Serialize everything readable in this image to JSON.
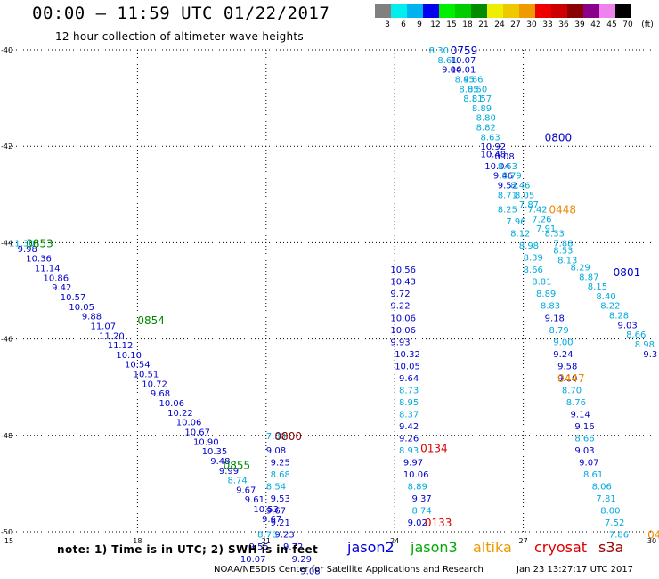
{
  "header": {
    "title": "00:00 – 11:59 UTC 01/22/2017",
    "subtitle": "12 hour collection of altimeter wave heights"
  },
  "color_scale": {
    "unit": "(ft)",
    "bins": [
      {
        "label": "3",
        "color": "#808080"
      },
      {
        "label": "6",
        "color": "#00eeee"
      },
      {
        "label": "9",
        "color": "#00b2ee"
      },
      {
        "label": "12",
        "color": "#0000ee"
      },
      {
        "label": "15",
        "color": "#00ee00"
      },
      {
        "label": "18",
        "color": "#00cd00"
      },
      {
        "label": "21",
        "color": "#008b00"
      },
      {
        "label": "24",
        "color": "#eeee00"
      },
      {
        "label": "27",
        "color": "#eec900"
      },
      {
        "label": "30",
        "color": "#ee9a00"
      },
      {
        "label": "33",
        "color": "#ee0000"
      },
      {
        "label": "36",
        "color": "#cd0000"
      },
      {
        "label": "39",
        "color": "#8b0000"
      },
      {
        "label": "42",
        "color": "#8b008b"
      },
      {
        "label": "45",
        "color": "#ee82ee"
      },
      {
        "label": "70",
        "color": "#000000"
      }
    ]
  },
  "map": {
    "lon_range": [
      15,
      30
    ],
    "lat_range": [
      -50,
      -40
    ],
    "lon_ticks": [
      "15",
      "18",
      "21",
      "24",
      "27",
      "30"
    ],
    "lat_ticks": [
      "-40",
      "-42",
      "-44",
      "-46",
      "-48",
      "-50"
    ],
    "colors": {
      "cyan": "#00aadd",
      "blue": "#0000cc",
      "green": "#008800",
      "orange": "#ee8800",
      "red": "#dd0000",
      "darkred": "#8b0000"
    },
    "tracks": [
      {
        "pts": [
          [
            15.0,
            -44.0,
            "11.30",
            "cyan"
          ],
          [
            15.2,
            -44.12,
            "9.98",
            "blue"
          ],
          [
            15.4,
            -44.32,
            "10.36",
            "blue"
          ],
          [
            15.6,
            -44.52,
            "11.14",
            "blue"
          ],
          [
            15.8,
            -44.72,
            "10.86",
            "blue"
          ],
          [
            16.0,
            -44.92,
            "9.42",
            "blue"
          ],
          [
            16.2,
            -45.12,
            "10.57",
            "blue"
          ],
          [
            16.4,
            -45.32,
            "10.05",
            "blue"
          ],
          [
            16.7,
            -45.52,
            "9.88",
            "blue"
          ],
          [
            16.9,
            -45.72,
            "11.07",
            "blue"
          ],
          [
            17.1,
            -45.92,
            "11.20",
            "blue"
          ],
          [
            17.3,
            -46.12,
            "11.12",
            "blue"
          ],
          [
            17.5,
            -46.32,
            "10.10",
            "blue"
          ],
          [
            17.7,
            -46.52,
            "10.54",
            "blue"
          ],
          [
            17.9,
            -46.72,
            "10.51",
            "blue"
          ],
          [
            18.1,
            -46.92,
            "10.72",
            "blue"
          ],
          [
            18.3,
            -47.12,
            "9.68",
            "blue"
          ],
          [
            18.5,
            -47.32,
            "10.06",
            "blue"
          ],
          [
            18.7,
            -47.52,
            "10.22",
            "blue"
          ],
          [
            18.9,
            -47.72,
            "10.06",
            "blue"
          ],
          [
            19.1,
            -47.92,
            "10.67",
            "blue"
          ],
          [
            19.3,
            -48.12,
            "10.90",
            "blue"
          ],
          [
            19.5,
            -48.32,
            "10.35",
            "blue"
          ],
          [
            19.7,
            -48.52,
            "9.48",
            "blue"
          ],
          [
            19.9,
            -48.72,
            "9.99",
            "blue"
          ],
          [
            20.1,
            -48.92,
            "8.74",
            "cyan"
          ],
          [
            20.3,
            -49.12,
            "9.67",
            "blue"
          ],
          [
            20.5,
            -49.32,
            "9.61",
            "blue"
          ],
          [
            20.7,
            -49.52,
            "10.53",
            "blue"
          ],
          [
            20.9,
            -49.72,
            "9.67",
            "blue"
          ]
        ]
      },
      {
        "pts": [
          [
            21.0,
            -48.0,
            "7.30",
            "cyan"
          ],
          [
            21.0,
            -48.3,
            "9.08",
            "blue"
          ],
          [
            21.1,
            -48.55,
            "9.25",
            "blue"
          ],
          [
            21.1,
            -48.8,
            "8.68",
            "cyan"
          ],
          [
            21.0,
            -49.05,
            "8.54",
            "cyan"
          ],
          [
            21.1,
            -49.3,
            "9.53",
            "blue"
          ],
          [
            21.0,
            -49.55,
            "9.67",
            "blue"
          ],
          [
            21.1,
            -49.8,
            "9.21",
            "blue"
          ],
          [
            21.2,
            -50.05,
            "9.23",
            "blue"
          ],
          [
            21.4,
            -50.3,
            "9.72",
            "blue"
          ],
          [
            21.6,
            -50.55,
            "9.29",
            "blue"
          ],
          [
            21.8,
            -50.8,
            "9.08",
            "blue"
          ],
          [
            20.8,
            -50.05,
            "8.78",
            "cyan"
          ],
          [
            20.6,
            -50.3,
            "9.55",
            "blue"
          ],
          [
            20.4,
            -50.55,
            "10.07",
            "blue"
          ]
        ]
      },
      {
        "pts": [
          [
            23.9,
            -44.55,
            "10.56",
            "blue"
          ],
          [
            23.9,
            -44.8,
            "10.43",
            "blue"
          ],
          [
            23.9,
            -45.05,
            "9.72",
            "blue"
          ],
          [
            23.9,
            -45.3,
            "9.22",
            "blue"
          ],
          [
            23.9,
            -45.55,
            "10.06",
            "blue"
          ],
          [
            23.9,
            -45.8,
            "10.06",
            "blue"
          ],
          [
            23.9,
            -46.05,
            "9.93",
            "blue"
          ],
          [
            24.0,
            -46.3,
            "10.32",
            "blue"
          ],
          [
            24.0,
            -46.55,
            "10.05",
            "blue"
          ],
          [
            24.1,
            -46.8,
            "9.64",
            "blue"
          ],
          [
            24.1,
            -47.05,
            "8.73",
            "cyan"
          ],
          [
            24.1,
            -47.3,
            "8.95",
            "cyan"
          ],
          [
            24.1,
            -47.55,
            "8.37",
            "cyan"
          ],
          [
            24.1,
            -47.8,
            "9.42",
            "blue"
          ],
          [
            24.1,
            -48.05,
            "9.26",
            "blue"
          ],
          [
            24.1,
            -48.3,
            "8.93",
            "cyan"
          ],
          [
            24.2,
            -48.55,
            "9.97",
            "blue"
          ],
          [
            24.2,
            -48.8,
            "10.06",
            "blue"
          ],
          [
            24.3,
            -49.05,
            "8.89",
            "cyan"
          ],
          [
            24.4,
            -49.3,
            "9.37",
            "blue"
          ],
          [
            24.4,
            -49.55,
            "8.74",
            "cyan"
          ],
          [
            24.3,
            -49.8,
            "9.02",
            "blue"
          ]
        ]
      },
      {
        "pts": [
          [
            24.8,
            -40.0,
            "8.30",
            "cyan"
          ],
          [
            25.0,
            -40.2,
            "8.61",
            "cyan"
          ],
          [
            25.1,
            -40.4,
            "9.04",
            "blue"
          ],
          [
            25.3,
            -40.4,
            "10.01",
            "blue"
          ],
          [
            25.3,
            -40.2,
            "10.07",
            "blue"
          ],
          [
            25.4,
            -40.6,
            "8.45",
            "cyan"
          ],
          [
            25.6,
            -40.6,
            "9.66",
            "cyan"
          ],
          [
            25.5,
            -40.8,
            "8.05",
            "cyan"
          ],
          [
            25.7,
            -40.8,
            "8.50",
            "cyan"
          ],
          [
            25.6,
            -41.0,
            "8.81",
            "cyan"
          ],
          [
            25.8,
            -41.0,
            "8.57",
            "cyan"
          ],
          [
            25.8,
            -41.2,
            "8.89",
            "cyan"
          ],
          [
            25.9,
            -41.4,
            "8.80",
            "cyan"
          ],
          [
            25.9,
            -41.6,
            "8.82",
            "cyan"
          ],
          [
            26.0,
            -41.8,
            "8.63",
            "cyan"
          ],
          [
            26.0,
            -42.0,
            "10.92",
            "blue"
          ],
          [
            26.0,
            -42.15,
            "10.48",
            "blue"
          ],
          [
            26.2,
            -42.2,
            "10.08",
            "blue"
          ],
          [
            26.1,
            -42.4,
            "10.04",
            "blue"
          ],
          [
            26.4,
            -42.4,
            "8.63",
            "cyan"
          ],
          [
            26.3,
            -42.6,
            "9.46",
            "blue"
          ],
          [
            26.5,
            -42.6,
            "8.79",
            "cyan"
          ],
          [
            26.4,
            -42.8,
            "9.52",
            "blue"
          ],
          [
            26.7,
            -42.8,
            "8.46",
            "cyan"
          ],
          [
            26.8,
            -43.0,
            "8.05",
            "cyan"
          ],
          [
            26.4,
            -43.0,
            "8.71",
            "cyan"
          ],
          [
            26.9,
            -43.2,
            "7.87",
            "cyan"
          ],
          [
            26.4,
            -43.3,
            "8.25",
            "cyan"
          ],
          [
            27.1,
            -43.3,
            "7.42",
            "cyan"
          ],
          [
            27.2,
            -43.5,
            "7.26",
            "cyan"
          ],
          [
            26.6,
            -43.55,
            "7.96",
            "cyan"
          ],
          [
            27.3,
            -43.7,
            "7.91",
            "cyan"
          ],
          [
            26.7,
            -43.8,
            "8.12",
            "cyan"
          ],
          [
            27.5,
            -43.8,
            "8.33",
            "cyan"
          ],
          [
            27.7,
            -44.0,
            "7.88",
            "cyan"
          ],
          [
            26.9,
            -44.05,
            "8.98",
            "cyan"
          ],
          [
            27.7,
            -44.15,
            "8.53",
            "cyan"
          ],
          [
            27.0,
            -44.3,
            "8.39",
            "cyan"
          ],
          [
            27.8,
            -44.35,
            "8.13",
            "cyan"
          ],
          [
            28.1,
            -44.5,
            "8.29",
            "cyan"
          ],
          [
            27.0,
            -44.55,
            "8.66",
            "cyan"
          ],
          [
            28.3,
            -44.7,
            "8.87",
            "cyan"
          ],
          [
            27.2,
            -44.8,
            "8.81",
            "cyan"
          ],
          [
            28.5,
            -44.9,
            "8.15",
            "cyan"
          ],
          [
            27.3,
            -45.05,
            "8.89",
            "cyan"
          ],
          [
            28.7,
            -45.1,
            "8.40",
            "cyan"
          ],
          [
            27.4,
            -45.3,
            "8.83",
            "cyan"
          ],
          [
            28.8,
            -45.3,
            "8.22",
            "cyan"
          ],
          [
            27.5,
            -45.55,
            "9.18",
            "blue"
          ],
          [
            29.0,
            -45.5,
            "8.28",
            "cyan"
          ],
          [
            27.6,
            -45.8,
            "8.79",
            "cyan"
          ],
          [
            29.2,
            -45.7,
            "9.03",
            "blue"
          ],
          [
            29.4,
            -45.9,
            "8.66",
            "cyan"
          ],
          [
            27.7,
            -46.05,
            "9.00",
            "cyan"
          ],
          [
            29.6,
            -46.1,
            "8.98",
            "cyan"
          ],
          [
            29.8,
            -46.3,
            "9.3",
            "blue"
          ],
          [
            27.7,
            -46.3,
            "9.24",
            "blue"
          ],
          [
            27.8,
            -46.55,
            "9.58",
            "blue"
          ],
          [
            27.8,
            -46.8,
            "9.10",
            "blue"
          ],
          [
            27.9,
            -47.05,
            "8.70",
            "cyan"
          ],
          [
            28.0,
            -47.3,
            "8.76",
            "cyan"
          ],
          [
            28.1,
            -47.55,
            "9.14",
            "blue"
          ],
          [
            28.2,
            -47.8,
            "9.16",
            "blue"
          ],
          [
            28.2,
            -48.05,
            "8.66",
            "cyan"
          ],
          [
            28.2,
            -48.3,
            "9.03",
            "blue"
          ],
          [
            28.3,
            -48.55,
            "9.07",
            "blue"
          ],
          [
            28.4,
            -48.8,
            "8.61",
            "cyan"
          ],
          [
            28.6,
            -49.05,
            "8.06",
            "cyan"
          ],
          [
            28.7,
            -49.3,
            "7.81",
            "cyan"
          ],
          [
            28.8,
            -49.55,
            "8.00",
            "cyan"
          ],
          [
            28.9,
            -49.8,
            "7.52",
            "cyan"
          ],
          [
            29.0,
            -50.05,
            "7.86",
            "cyan"
          ]
        ]
      }
    ],
    "time_labels": [
      [
        25.3,
        -40.0,
        "0759",
        "blue"
      ],
      [
        27.5,
        -41.8,
        "0800",
        "blue"
      ],
      [
        27.6,
        -43.3,
        "0448",
        "orange"
      ],
      [
        29.1,
        -44.6,
        "0801",
        "blue"
      ],
      [
        27.8,
        -46.8,
        "0447",
        "orange"
      ],
      [
        15.4,
        -44.0,
        "0853",
        "green"
      ],
      [
        18.0,
        -45.6,
        "0854",
        "green"
      ],
      [
        21.2,
        -48.0,
        "0800",
        "darkred"
      ],
      [
        20.0,
        -48.6,
        "0855",
        "green"
      ],
      [
        24.6,
        -48.25,
        "0134",
        "red"
      ],
      [
        24.7,
        -49.8,
        "0133",
        "red"
      ],
      [
        29.9,
        -50.05,
        "04",
        "orange"
      ]
    ]
  },
  "footer": {
    "note": "note:  1) Time is in UTC;  2) SWH is in feet",
    "satellites": [
      {
        "name": "jason2",
        "color": "#0000dd"
      },
      {
        "name": "jason3",
        "color": "#00aa00"
      },
      {
        "name": "altika",
        "color": "#ee9900"
      },
      {
        "name": "cryosat",
        "color": "#dd0000"
      },
      {
        "name": "s3a",
        "color": "#990000"
      }
    ],
    "credit": "NOAA/NESDIS Center for Satellite Applications and Research",
    "stamp": "Jan 23 13:27:17 UTC 2017"
  }
}
